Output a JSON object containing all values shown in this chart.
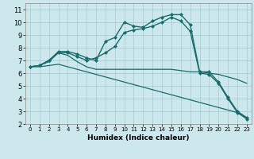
{
  "title": "",
  "xlabel": "Humidex (Indice chaleur)",
  "ylabel": "",
  "background_color": "#cce8ec",
  "grid_color": "#aacdd4",
  "line_color": "#1a6b6b",
  "xlim": [
    -0.5,
    23.5
  ],
  "ylim": [
    2,
    11.5
  ],
  "xticks": [
    0,
    1,
    2,
    3,
    4,
    5,
    6,
    7,
    8,
    9,
    10,
    11,
    12,
    13,
    14,
    15,
    16,
    17,
    18,
    19,
    20,
    21,
    22,
    23
  ],
  "yticks": [
    2,
    3,
    4,
    5,
    6,
    7,
    8,
    9,
    10,
    11
  ],
  "lines": [
    {
      "x": [
        0,
        1,
        2,
        3,
        4,
        5,
        6,
        7,
        8,
        9,
        10,
        11,
        12,
        13,
        14,
        15,
        16,
        17,
        18,
        19,
        20,
        21,
        22,
        23
      ],
      "y": [
        6.5,
        6.6,
        7.0,
        7.7,
        7.7,
        7.5,
        7.2,
        7.0,
        8.5,
        8.8,
        10.0,
        9.7,
        9.6,
        10.1,
        10.4,
        10.6,
        10.6,
        9.8,
        6.1,
        6.1,
        5.3,
        4.1,
        3.0,
        2.5
      ],
      "marker": "D",
      "markersize": 2.0,
      "linewidth": 1.0
    },
    {
      "x": [
        0,
        1,
        2,
        3,
        4,
        5,
        6,
        7,
        8,
        9,
        10,
        11,
        12,
        13,
        14,
        15,
        16,
        17,
        18,
        19,
        20,
        21,
        22,
        23
      ],
      "y": [
        6.5,
        6.6,
        7.0,
        7.6,
        7.6,
        7.3,
        7.0,
        7.2,
        7.6,
        8.1,
        9.2,
        9.4,
        9.5,
        9.7,
        10.0,
        10.4,
        10.1,
        9.3,
        6.0,
        5.9,
        5.2,
        4.0,
        2.9,
        2.4
      ],
      "marker": "D",
      "markersize": 2.0,
      "linewidth": 1.0
    },
    {
      "x": [
        0,
        1,
        2,
        3,
        4,
        5,
        6,
        7,
        8,
        9,
        10,
        11,
        12,
        13,
        14,
        15,
        16,
        17,
        18,
        19,
        20,
        21,
        22,
        23
      ],
      "y": [
        6.5,
        6.6,
        6.9,
        7.6,
        7.4,
        6.9,
        6.5,
        6.3,
        6.3,
        6.3,
        6.3,
        6.3,
        6.3,
        6.3,
        6.3,
        6.3,
        6.2,
        6.1,
        6.1,
        6.0,
        5.9,
        5.7,
        5.5,
        5.2
      ],
      "marker": null,
      "markersize": 0,
      "linewidth": 0.9
    },
    {
      "x": [
        0,
        1,
        2,
        3,
        4,
        5,
        6,
        7,
        8,
        9,
        10,
        11,
        12,
        13,
        14,
        15,
        16,
        17,
        18,
        19,
        20,
        21,
        22,
        23
      ],
      "y": [
        6.5,
        6.5,
        6.6,
        6.7,
        6.5,
        6.3,
        6.1,
        5.9,
        5.7,
        5.5,
        5.3,
        5.1,
        4.9,
        4.7,
        4.5,
        4.3,
        4.1,
        3.9,
        3.7,
        3.5,
        3.3,
        3.1,
        2.9,
        2.5
      ],
      "marker": null,
      "markersize": 0,
      "linewidth": 0.9
    }
  ]
}
